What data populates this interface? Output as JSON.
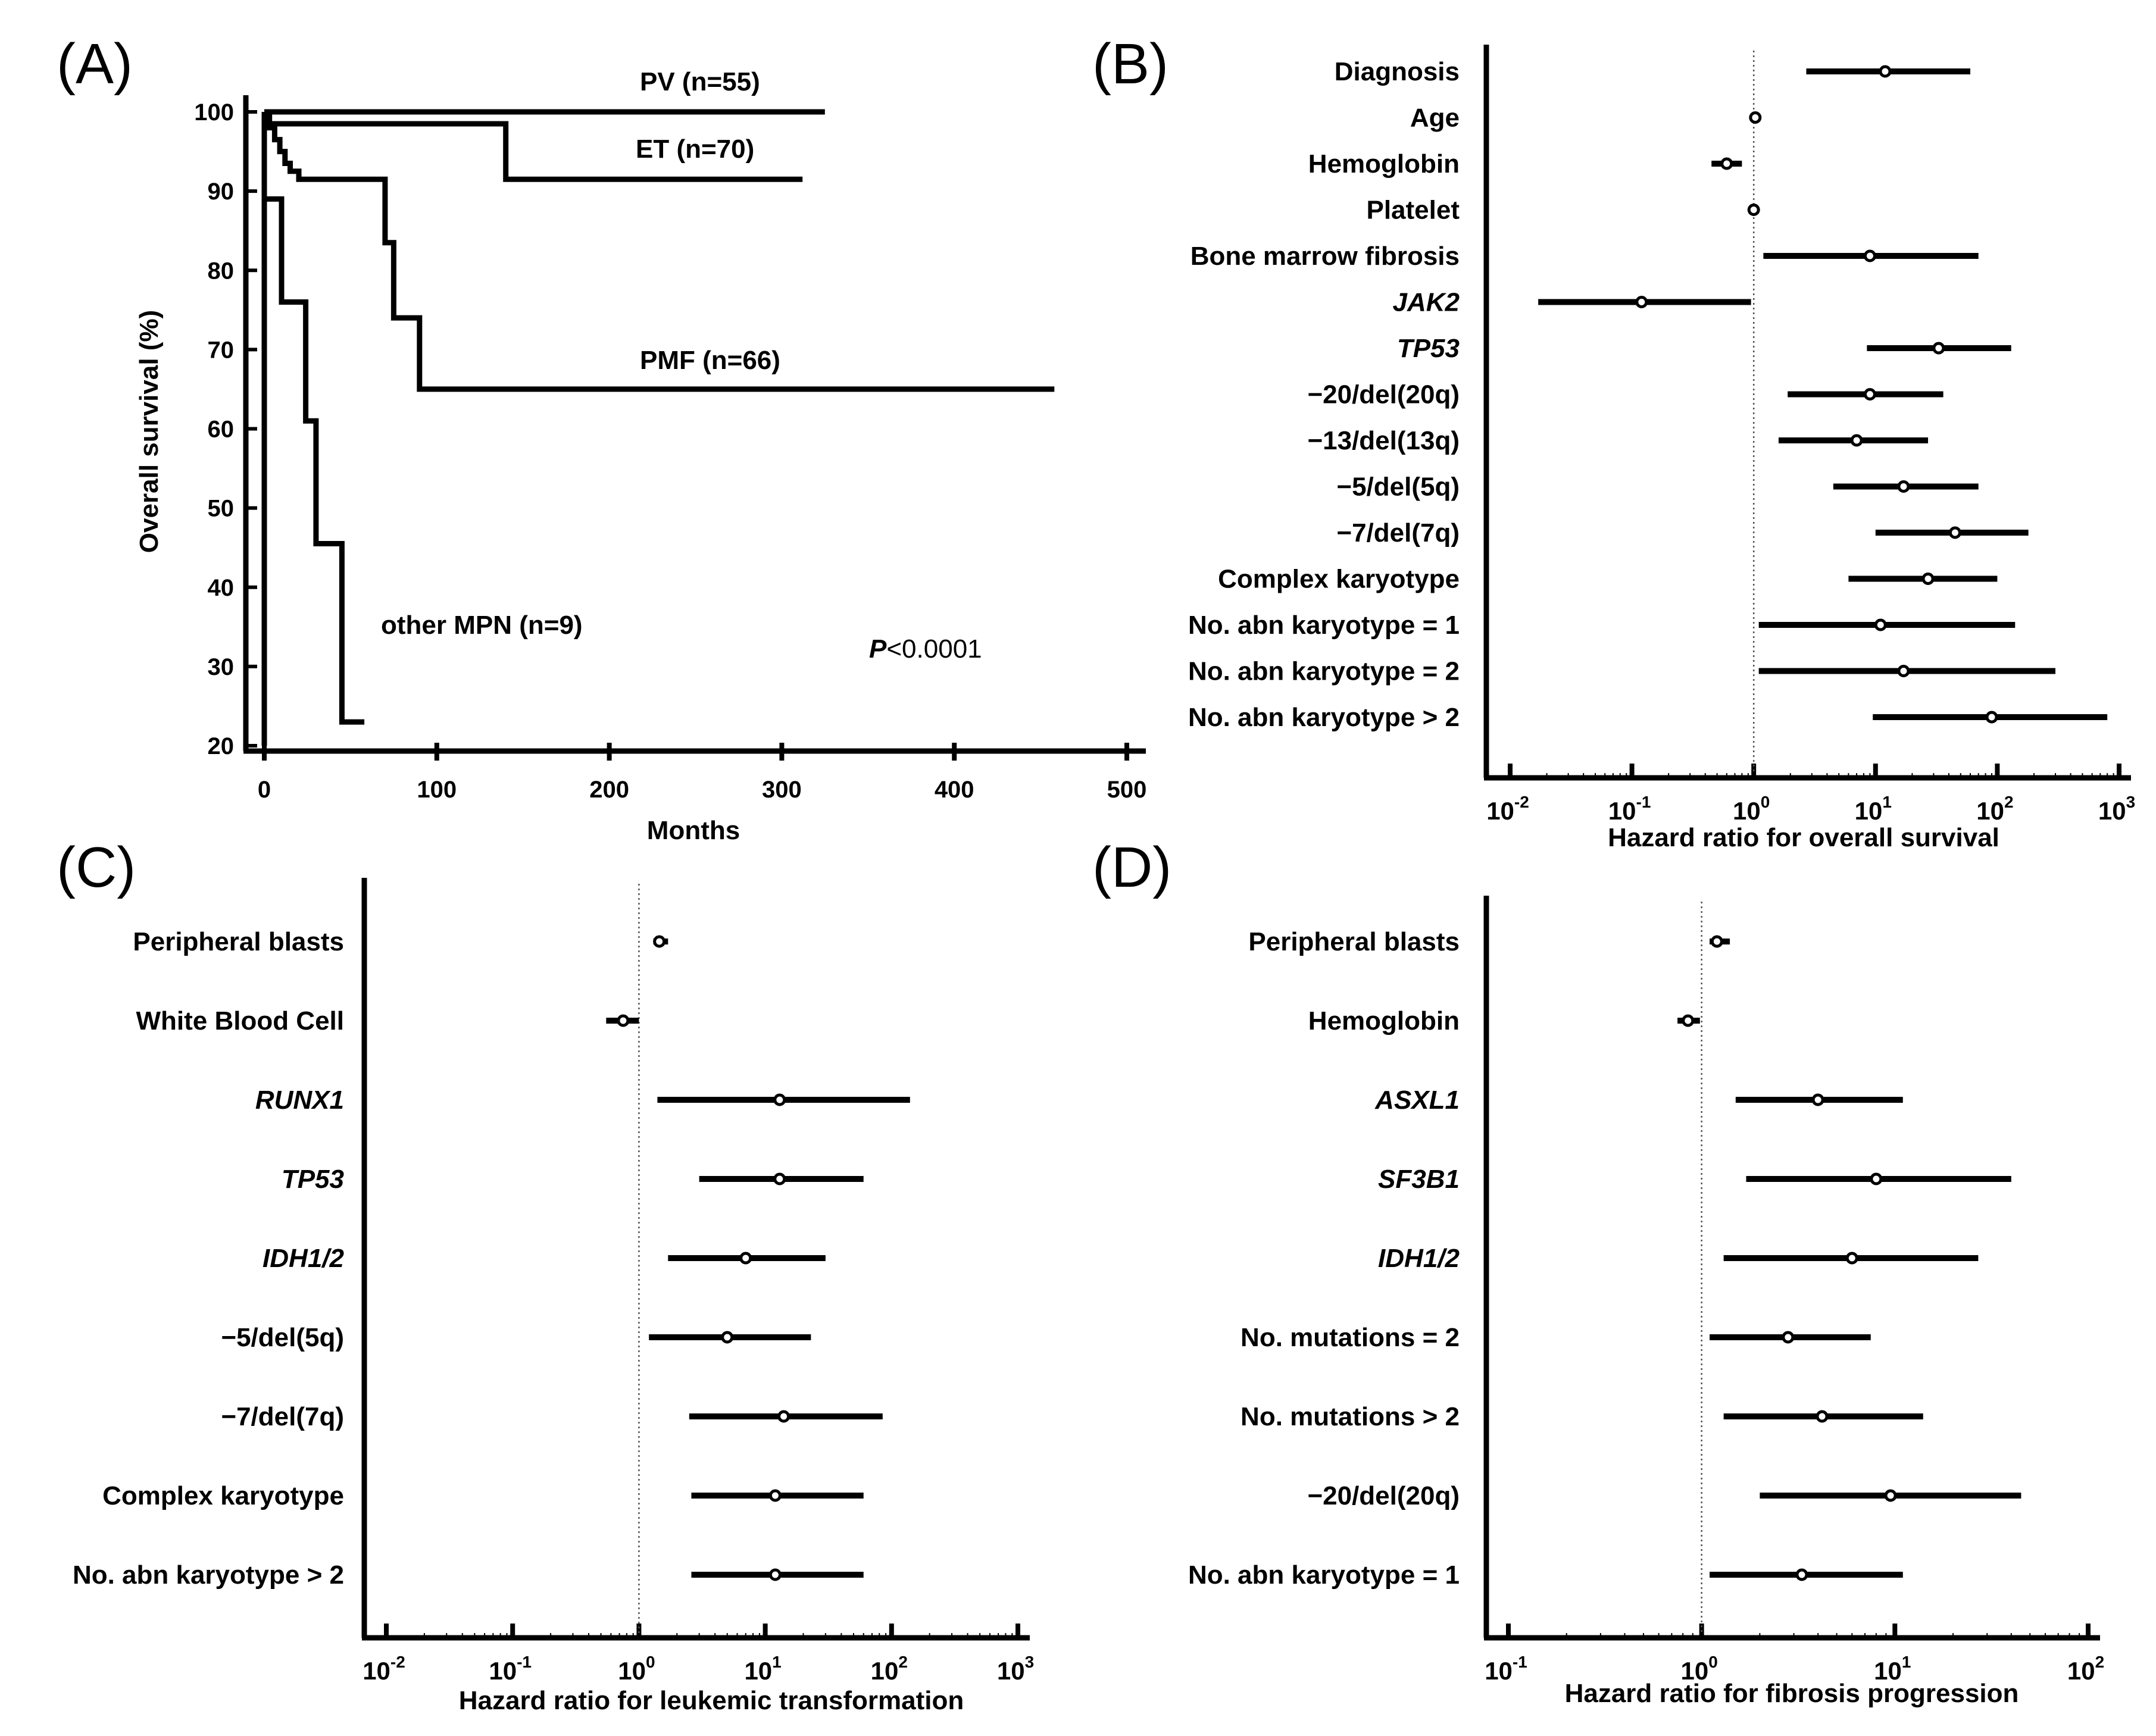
{
  "chart_data": [
    {
      "panel": "(A)",
      "type": "line",
      "subtype": "kaplan-meier",
      "xlabel": "Months",
      "ylabel": "Overall survival (%)",
      "xlim": [
        0,
        500
      ],
      "ylim": [
        20,
        100
      ],
      "xticks": [
        0,
        100,
        200,
        300,
        400,
        500
      ],
      "yticks": [
        20,
        30,
        40,
        50,
        60,
        70,
        80,
        90,
        100
      ],
      "annotation": {
        "italic": "P",
        "text": "<0.0001"
      },
      "series": [
        {
          "name": "PV (n=55)",
          "x": [
            0,
            325
          ],
          "y": [
            100,
            100
          ]
        },
        {
          "name": "ET (n=70)",
          "x": [
            0,
            140,
            140,
            312
          ],
          "y": [
            98.5,
            98.5,
            91.5,
            91.5
          ]
        },
        {
          "name": "PMF (n=66)",
          "x": [
            0,
            3,
            3,
            6,
            6,
            9,
            9,
            12,
            12,
            15,
            15,
            20,
            20,
            70,
            70,
            75,
            75,
            90,
            90,
            458
          ],
          "y": [
            100,
            100,
            98,
            98,
            96.5,
            96.5,
            95,
            95,
            93.5,
            93.5,
            92.5,
            92.5,
            91.5,
            91.5,
            83.5,
            83.5,
            74,
            74,
            65,
            65
          ]
        },
        {
          "name": "other MPN (n=9)",
          "x": [
            0,
            0,
            0,
            10,
            10,
            24,
            24,
            30,
            30,
            45,
            45,
            58
          ],
          "y": [
            20,
            100,
            89,
            89,
            76,
            76,
            61,
            61,
            45.5,
            45.5,
            23,
            23
          ]
        }
      ]
    },
    {
      "panel": "(B)",
      "type": "forest",
      "xscale": "log",
      "xlabel": "Hazard ratio for overall survival",
      "xlim_exp": [
        -2,
        3
      ],
      "reference": 1,
      "rows": [
        {
          "label": "Diagnosis",
          "hr": 12,
          "lo": 2.7,
          "hi": 60
        },
        {
          "label": "Age",
          "hr": 1.03,
          "lo": 1.01,
          "hi": 1.05
        },
        {
          "label": "Hemoglobin",
          "hr": 0.6,
          "lo": 0.45,
          "hi": 0.8
        },
        {
          "label": "Platelet",
          "hr": 1.0,
          "lo": 0.99,
          "hi": 1.01
        },
        {
          "label": "Bone marrow fibrosis",
          "hr": 9,
          "lo": 1.2,
          "hi": 70
        },
        {
          "label": "JAK2",
          "hr": 0.12,
          "lo": 0.017,
          "hi": 0.95,
          "italic": true
        },
        {
          "label": "TP53",
          "hr": 33,
          "lo": 8.5,
          "hi": 130,
          "italic": true
        },
        {
          "label": "−20/del(20q)",
          "hr": 9,
          "lo": 1.9,
          "hi": 36
        },
        {
          "label": "−13/del(13q)",
          "hr": 7,
          "lo": 1.6,
          "hi": 27
        },
        {
          "label": "−5/del(5q)",
          "hr": 17,
          "lo": 4.5,
          "hi": 70
        },
        {
          "label": "−7/del(7q)",
          "hr": 45,
          "lo": 10,
          "hi": 180
        },
        {
          "label": "Complex karyotype",
          "hr": 27,
          "lo": 6,
          "hi": 100
        },
        {
          "label": "No. abn karyotype = 1",
          "hr": 11,
          "lo": 1.1,
          "hi": 140
        },
        {
          "label": "No. abn karyotype = 2",
          "hr": 17,
          "lo": 1.1,
          "hi": 300
        },
        {
          "label": "No. abn karyotype > 2",
          "hr": 90,
          "lo": 9.5,
          "hi": 800
        }
      ]
    },
    {
      "panel": "(C)",
      "type": "forest",
      "xscale": "log",
      "xlabel": "Hazard ratio for leukemic transformation",
      "xlim_exp": [
        -2,
        3
      ],
      "reference": 1,
      "rows": [
        {
          "label": "Peripheral blasts",
          "hr": 1.45,
          "lo": 1.3,
          "hi": 1.7
        },
        {
          "label": "White Blood Cell",
          "hr": 0.75,
          "lo": 0.55,
          "hi": 1.0
        },
        {
          "label": "RUNX1",
          "hr": 13,
          "lo": 1.4,
          "hi": 140,
          "italic": true
        },
        {
          "label": "TP53",
          "hr": 13,
          "lo": 3,
          "hi": 60,
          "italic": true
        },
        {
          "label": "IDH1/2",
          "hr": 7,
          "lo": 1.7,
          "hi": 30,
          "italic": true
        },
        {
          "label": "−5/del(5q)",
          "hr": 5,
          "lo": 1.2,
          "hi": 23
        },
        {
          "label": "−7/del(7q)",
          "hr": 14,
          "lo": 2.5,
          "hi": 85
        },
        {
          "label": "Complex karyotype",
          "hr": 12,
          "lo": 2.6,
          "hi": 60
        },
        {
          "label": "No. abn karyotype > 2",
          "hr": 12,
          "lo": 2.6,
          "hi": 60
        }
      ]
    },
    {
      "panel": "(D)",
      "type": "forest",
      "xscale": "log",
      "xlabel": "Hazard ratio for fibrosis progression",
      "xlim_exp": [
        -1,
        2
      ],
      "reference": 1,
      "rows": [
        {
          "label": "Peripheral blasts",
          "hr": 1.2,
          "lo": 1.1,
          "hi": 1.4
        },
        {
          "label": "Hemoglobin",
          "hr": 0.85,
          "lo": 0.75,
          "hi": 0.98
        },
        {
          "label": "ASXL1",
          "hr": 4,
          "lo": 1.5,
          "hi": 11,
          "italic": true
        },
        {
          "label": "SF3B1",
          "hr": 8,
          "lo": 1.7,
          "hi": 40,
          "italic": true
        },
        {
          "label": "IDH1/2",
          "hr": 6,
          "lo": 1.3,
          "hi": 27,
          "italic": true
        },
        {
          "label": "No. mutations = 2",
          "hr": 2.8,
          "lo": 1.1,
          "hi": 7.5
        },
        {
          "label": "No.  mutations > 2",
          "hr": 4.2,
          "lo": 1.3,
          "hi": 14
        },
        {
          "label": "−20/del(20q)",
          "hr": 9.5,
          "lo": 2,
          "hi": 45
        },
        {
          "label": "No. abn karyotype = 1",
          "hr": 3.3,
          "lo": 1.1,
          "hi": 11
        }
      ]
    }
  ]
}
